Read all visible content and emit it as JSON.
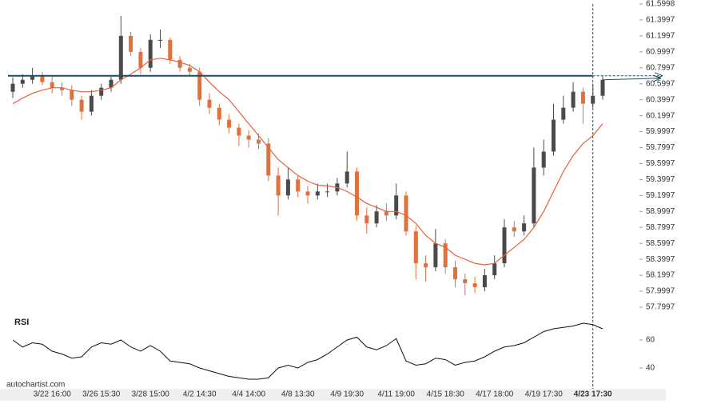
{
  "chart_data": [
    {
      "type": "candlestick",
      "categories": [
        null,
        null,
        null,
        null,
        "3/22 16:00",
        null,
        null,
        null,
        null,
        "3/26 15:30",
        null,
        null,
        null,
        null,
        "3/28 15:00",
        null,
        null,
        null,
        null,
        "4/2 14:30",
        null,
        null,
        null,
        null,
        "4/4 14:00",
        null,
        null,
        null,
        null,
        "4/8 13:30",
        null,
        null,
        null,
        null,
        "4/9 19:30",
        null,
        null,
        null,
        null,
        "4/11 19:00",
        null,
        null,
        null,
        null,
        "4/15 18:30",
        null,
        null,
        null,
        null,
        "4/17 18:00",
        null,
        null,
        null,
        null,
        "4/19 17:30",
        null,
        null,
        null,
        null,
        "4/23 17:30",
        null
      ],
      "open": [
        60.5,
        60.6,
        60.65,
        60.7,
        60.62,
        60.55,
        60.52,
        60.4,
        60.25,
        60.45,
        60.55,
        60.65,
        61.2,
        61.0,
        60.8,
        61.15,
        61.15,
        60.9,
        60.8,
        60.75,
        60.4,
        60.3,
        60.15,
        60.05,
        59.95,
        59.9,
        59.85,
        59.45,
        59.2,
        59.4,
        59.25,
        59.2,
        59.25,
        59.25,
        59.35,
        59.5,
        58.95,
        58.85,
        59.0,
        58.95,
        59.2,
        58.75,
        58.35,
        58.3,
        58.6,
        58.3,
        58.15,
        58.1,
        58.05,
        58.2,
        58.35,
        58.8,
        58.75,
        58.85,
        59.55,
        59.75,
        60.15,
        60.3,
        60.5,
        60.35,
        60.45
      ],
      "high": [
        60.68,
        60.72,
        60.8,
        60.75,
        60.7,
        60.62,
        60.58,
        60.45,
        60.52,
        60.6,
        60.7,
        61.45,
        61.25,
        61.05,
        61.22,
        61.28,
        61.18,
        60.95,
        60.85,
        60.8,
        60.48,
        60.35,
        60.22,
        60.1,
        60.02,
        59.98,
        59.92,
        59.55,
        59.55,
        59.45,
        59.32,
        59.35,
        59.35,
        59.42,
        59.75,
        59.55,
        59.05,
        59.08,
        59.1,
        59.35,
        59.25,
        58.82,
        58.45,
        58.78,
        58.65,
        58.38,
        58.22,
        58.18,
        58.28,
        58.45,
        58.9,
        58.88,
        58.95,
        59.8,
        59.9,
        60.35,
        60.45,
        60.62,
        60.55,
        60.6,
        60.7
      ],
      "low": [
        60.42,
        60.55,
        60.6,
        60.58,
        60.48,
        60.45,
        60.32,
        60.15,
        60.2,
        60.4,
        60.5,
        60.6,
        60.95,
        60.72,
        60.75,
        61.05,
        60.85,
        60.75,
        60.7,
        60.32,
        60.22,
        60.08,
        59.98,
        59.82,
        59.8,
        59.78,
        59.38,
        58.95,
        59.15,
        59.18,
        59.1,
        59.15,
        59.18,
        59.2,
        59.3,
        58.88,
        58.72,
        58.8,
        58.88,
        58.9,
        58.7,
        58.15,
        58.12,
        58.25,
        58.22,
        58.05,
        57.95,
        57.98,
        58.0,
        58.15,
        58.3,
        58.68,
        58.7,
        58.8,
        59.45,
        59.7,
        60.1,
        60.25,
        60.1,
        60.3,
        60.4
      ],
      "close": [
        60.6,
        60.65,
        60.7,
        60.62,
        60.55,
        60.52,
        60.4,
        60.25,
        60.45,
        60.55,
        60.65,
        61.2,
        61.0,
        60.8,
        61.15,
        61.15,
        60.9,
        60.8,
        60.75,
        60.4,
        60.3,
        60.15,
        60.05,
        59.95,
        59.9,
        59.85,
        59.45,
        59.2,
        59.4,
        59.25,
        59.2,
        59.25,
        59.25,
        59.35,
        59.5,
        58.95,
        58.85,
        59.0,
        58.95,
        59.2,
        58.75,
        58.35,
        58.3,
        58.6,
        58.3,
        58.15,
        58.1,
        58.05,
        58.2,
        58.35,
        58.8,
        58.75,
        58.85,
        59.55,
        59.75,
        60.15,
        60.3,
        60.5,
        60.35,
        60.45,
        60.65
      ],
      "up_color": "#4a4a4a",
      "down_color": "#e0703c",
      "moving_average": {
        "color": "#e8603a",
        "values": [
          60.35,
          60.42,
          60.48,
          60.52,
          60.55,
          60.55,
          60.52,
          60.5,
          60.5,
          60.52,
          60.55,
          60.65,
          60.72,
          60.8,
          60.9,
          60.92,
          60.9,
          60.87,
          60.83,
          60.75,
          60.62,
          60.5,
          60.4,
          60.25,
          60.1,
          59.95,
          59.8,
          59.65,
          59.55,
          59.45,
          59.38,
          59.33,
          59.32,
          59.3,
          59.25,
          59.18,
          59.1,
          59.05,
          59.0,
          59.0,
          58.95,
          58.85,
          58.7,
          58.6,
          58.55,
          58.45,
          58.4,
          58.35,
          58.33,
          58.35,
          58.45,
          58.55,
          58.65,
          58.8,
          59.0,
          59.25,
          59.5,
          59.7,
          59.85,
          59.95,
          60.1
        ]
      },
      "resistance": 60.7,
      "resistance_color": "#1f4e5f",
      "ylim": [
        57.7997,
        61.5998
      ],
      "yticks": [
        61.5998,
        61.3997,
        61.1997,
        60.9997,
        60.7997,
        60.5997,
        60.3997,
        60.1997,
        59.9997,
        59.7997,
        59.5997,
        59.3997,
        59.1997,
        58.9997,
        58.7997,
        58.5997,
        58.3997,
        58.1997,
        57.9997,
        57.7997
      ],
      "source": "autochartist.com"
    },
    {
      "type": "line",
      "title": "RSI",
      "color": "#111111",
      "values": [
        60,
        55,
        58,
        57,
        52,
        50,
        47,
        48,
        55,
        58,
        57,
        60,
        55,
        52,
        56,
        52,
        45,
        44,
        43,
        40,
        38,
        36,
        34,
        33,
        32,
        32,
        33,
        40,
        42,
        40,
        44,
        46,
        50,
        55,
        60,
        62,
        55,
        53,
        56,
        61,
        45,
        42,
        43,
        47,
        46,
        42,
        44,
        45,
        48,
        52,
        55,
        56,
        58,
        62,
        66,
        68,
        69,
        70,
        72,
        71,
        68
      ],
      "ylim": [
        28.57,
        77.14
      ],
      "yticks": [
        40,
        60
      ]
    }
  ]
}
